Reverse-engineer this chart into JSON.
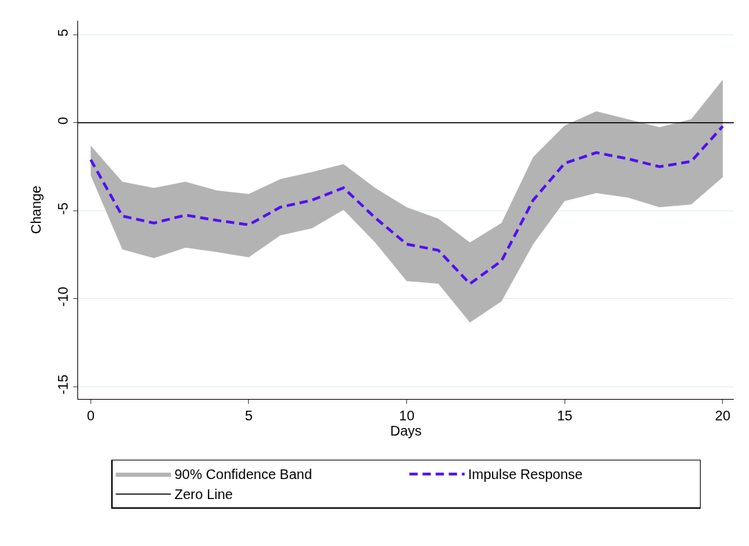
{
  "chart_data": {
    "type": "line",
    "xlabel": "Days",
    "ylabel": "Change",
    "x": [
      0,
      1,
      2,
      3,
      4,
      5,
      6,
      7,
      8,
      9,
      10,
      11,
      12,
      13,
      14,
      15,
      16,
      17,
      18,
      19,
      20
    ],
    "series": [
      {
        "name": "90% Confidence Band",
        "color": "#b3b3b3",
        "values": [
          null,
          null,
          null,
          null,
          null,
          null,
          null,
          null,
          null,
          null,
          null,
          null,
          null,
          null,
          null,
          null,
          null,
          null,
          null,
          null,
          null
        ],
        "lower": [
          -3.0,
          -7.2,
          -7.7,
          -7.1,
          -7.35,
          -7.65,
          -6.4,
          -6.0,
          -4.95,
          -6.8,
          -9.0,
          -9.15,
          -11.35,
          -10.15,
          -6.9,
          -4.45,
          -4.0,
          -4.25,
          -4.8,
          -4.65,
          -3.1
        ],
        "upper": [
          -1.3,
          -3.35,
          -3.7,
          -3.35,
          -3.85,
          -4.05,
          -3.2,
          -2.8,
          -2.35,
          -3.7,
          -4.8,
          -5.45,
          -6.8,
          -5.7,
          -1.95,
          -0.15,
          0.65,
          0.2,
          -0.25,
          0.2,
          2.45
        ]
      },
      {
        "name": "Impulse Response",
        "color": "#5010f0",
        "line_style": "dashed",
        "values": [
          -2.1,
          -5.3,
          -5.7,
          -5.25,
          -5.55,
          -5.8,
          -4.8,
          -4.4,
          -3.7,
          -5.4,
          -6.9,
          -7.25,
          -9.15,
          -7.85,
          -4.4,
          -2.3,
          -1.7,
          -2.05,
          -2.5,
          -2.2,
          -0.2
        ]
      }
    ],
    "ref_lines": [
      {
        "axis": "y",
        "value": 0,
        "label": "Zero Line",
        "color": "#000000",
        "line_style": "solid"
      }
    ],
    "xlim": [
      -0.4,
      20.35
    ],
    "xticks": [
      0,
      5,
      10,
      15,
      20
    ],
    "ylim": [
      -15.7,
      5.8
    ],
    "yticks": [
      -15,
      -10,
      -5,
      0,
      5
    ],
    "grid": "y",
    "legend": "bottom",
    "marker": "none"
  }
}
